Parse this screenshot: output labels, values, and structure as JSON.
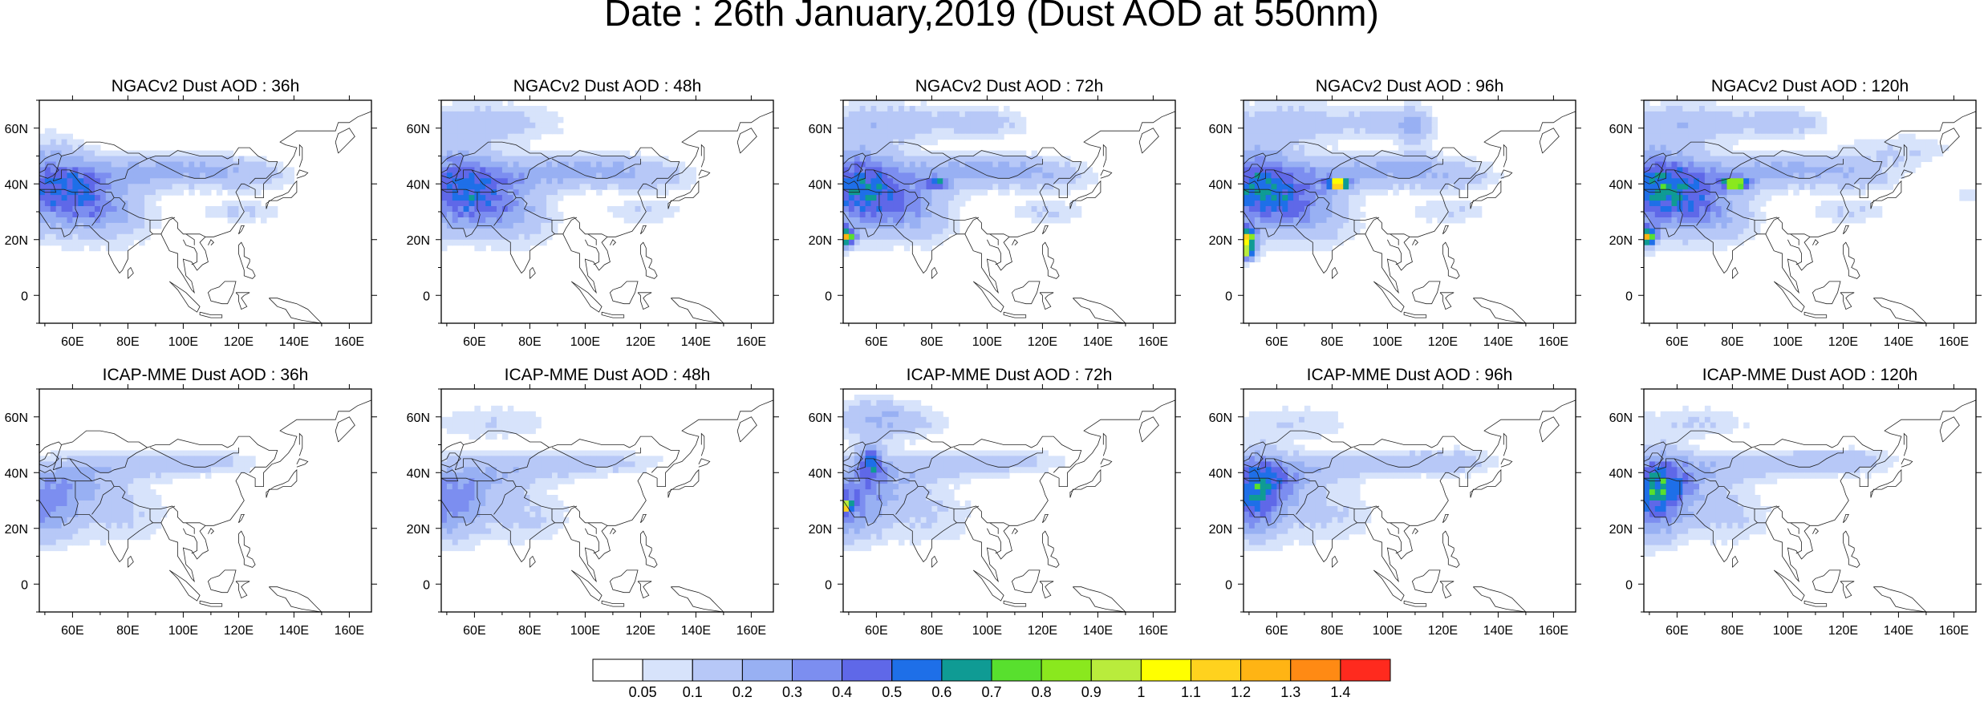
{
  "figure": {
    "title": "Date : 26th January,2019 (Dust AOD at 550nm)"
  },
  "map_extent": {
    "lon": [
      48,
      168
    ],
    "lat": [
      -10,
      70
    ]
  },
  "axes": {
    "lon_ticks": [
      {
        "value": 60,
        "label": "60E"
      },
      {
        "value": 80,
        "label": "80E"
      },
      {
        "value": 100,
        "label": "100E"
      },
      {
        "value": 120,
        "label": "120E"
      },
      {
        "value": 140,
        "label": "140E"
      },
      {
        "value": 160,
        "label": "160E"
      }
    ],
    "lat_ticks": [
      {
        "value": 60,
        "label": "60N"
      },
      {
        "value": 40,
        "label": "40N"
      },
      {
        "value": 20,
        "label": "20N"
      },
      {
        "value": 0,
        "label": "0"
      }
    ]
  },
  "panels": [
    {
      "title": "NGACv2 Dust AOD : 36h",
      "model": "ngac",
      "lead": 36
    },
    {
      "title": "NGACv2 Dust AOD : 48h",
      "model": "ngac",
      "lead": 48
    },
    {
      "title": "NGACv2 Dust AOD : 72h",
      "model": "ngac",
      "lead": 72
    },
    {
      "title": "NGACv2 Dust AOD : 96h",
      "model": "ngac",
      "lead": 96
    },
    {
      "title": "NGACv2 Dust AOD : 120h",
      "model": "ngac",
      "lead": 120
    },
    {
      "title": "ICAP-MME Dust AOD : 36h",
      "model": "icap",
      "lead": 36
    },
    {
      "title": "ICAP-MME Dust AOD : 48h",
      "model": "icap",
      "lead": 48
    },
    {
      "title": "ICAP-MME Dust AOD : 72h",
      "model": "icap",
      "lead": 72
    },
    {
      "title": "ICAP-MME Dust AOD : 96h",
      "model": "icap",
      "lead": 96
    },
    {
      "title": "ICAP-MME Dust AOD : 120h",
      "model": "icap",
      "lead": 120
    }
  ],
  "colorbar": {
    "colors": [
      "#ffffff",
      "#d7e3fb",
      "#b7c8f7",
      "#98b0f3",
      "#7c8ef0",
      "#5f68e8",
      "#1e6fe8",
      "#0f9b94",
      "#58e02e",
      "#8ae81e",
      "#b9ec3c",
      "#ffff00",
      "#ffd21e",
      "#ffb414",
      "#ff8a14",
      "#ff2a1e"
    ],
    "labels": [
      "0.05",
      "0.1",
      "0.2",
      "0.3",
      "0.4",
      "0.5",
      "0.6",
      "0.7",
      "0.8",
      "0.9",
      "1",
      "1.1",
      "1.2",
      "1.3",
      "1.4"
    ]
  }
}
